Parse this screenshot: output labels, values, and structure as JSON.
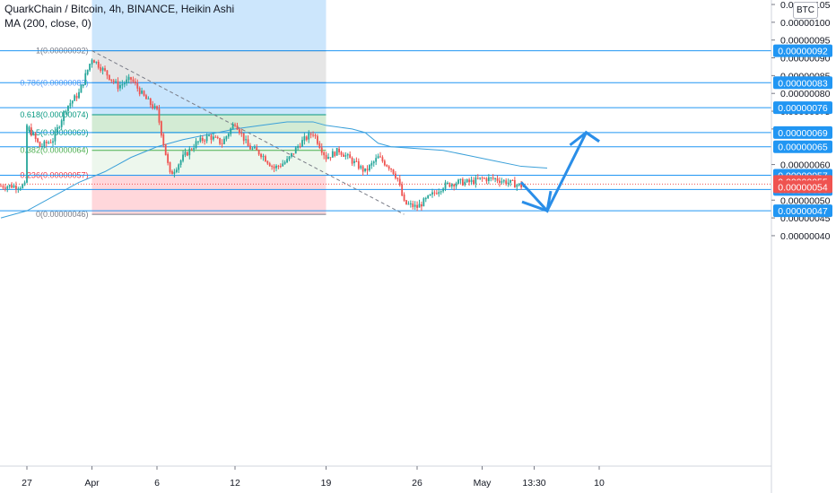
{
  "header": {
    "symbol_line": "QuarkChain / Bitcoin, 4h, BINANCE, Heikin Ashi",
    "indicator_line": "MA (200, close, 0)",
    "currency_button": "BTC"
  },
  "colors": {
    "up": "#26a69a",
    "down": "#ef5350",
    "ma": "#3ba0d9",
    "level_line": "#2196f3",
    "arrow": "#2a8ee8",
    "label_bg": "#2196f3",
    "range_blue": "#bbdefb",
    "fib_gray": "#e0e0e0",
    "fib_green": "#e8f5e9",
    "fib_red": "#ffcdd2"
  },
  "axis": {
    "y_ticks": [
      {
        "label": "0.00000105",
        "value": 1.05
      },
      {
        "label": "0.00000100",
        "value": 1.0
      },
      {
        "label": "0.00000095",
        "value": 0.95
      },
      {
        "label": "0.00000090",
        "value": 0.9
      },
      {
        "label": "0.00000085",
        "value": 0.85
      },
      {
        "label": "0.00000080",
        "value": 0.8
      },
      {
        "label": "0.00000075",
        "value": 0.75
      },
      {
        "label": "0.00000070",
        "value": 0.7
      },
      {
        "label": "0.00000060",
        "value": 0.6
      },
      {
        "label": "0.00000050",
        "value": 0.5
      },
      {
        "label": "0.00000045",
        "value": 0.45
      },
      {
        "label": "0.00000040",
        "value": 0.4
      }
    ],
    "x_ticks": [
      {
        "label": "27",
        "value": 0
      },
      {
        "label": "Apr",
        "value": 5
      },
      {
        "label": "6",
        "value": 10
      },
      {
        "label": "12",
        "value": 16
      },
      {
        "label": "19",
        "value": 23
      },
      {
        "label": "26",
        "value": 30
      },
      {
        "label": "May",
        "value": 35
      },
      {
        "label": "13:30",
        "value": 39
      },
      {
        "label": "10",
        "value": 44
      }
    ]
  },
  "price_levels": [
    {
      "label": "0.00000092",
      "value": 0.92
    },
    {
      "label": "0.00000083",
      "value": 0.83
    },
    {
      "label": "0.00000076",
      "value": 0.76
    },
    {
      "label": "0.00000069",
      "value": 0.69
    },
    {
      "label": "0.00000065",
      "value": 0.65
    },
    {
      "label": "0.00000057",
      "value": 0.57
    },
    {
      "label": "0.00000053",
      "value": 0.53
    },
    {
      "label": "0.00000047",
      "value": 0.47
    }
  ],
  "current_price_labels": [
    {
      "label": "0.00000055",
      "value": 0.55
    },
    {
      "label": "0.00000054",
      "value": 0.54
    }
  ],
  "fib_levels": [
    {
      "label": "1(0.00000092)",
      "value": 0.92,
      "color": "#787b86"
    },
    {
      "label": "0.786(0.00000083)",
      "value": 0.83,
      "color": "#5b9cf6"
    },
    {
      "label": "0.618(0.00000074)",
      "value": 0.74,
      "color": "#089981"
    },
    {
      "label": "0.5(0.00000069)",
      "value": 0.69,
      "color": "#089981"
    },
    {
      "label": "0.382(0.00000064)",
      "value": 0.64,
      "color": "#4caf50"
    },
    {
      "label": "0.236(0.00000057)",
      "value": 0.57,
      "color": "#f23645"
    },
    {
      "label": "0(0.00000046)",
      "value": 0.46,
      "color": "#787b86"
    }
  ],
  "chart_data": {
    "type": "candlestick",
    "price_unit": "1e-6 BTC",
    "ylim": [
      0.4,
      1.05
    ],
    "date_range_start": 5,
    "date_range_end": 23,
    "price_path": [
      [
        0,
        0.71
      ],
      [
        1,
        0.65
      ],
      [
        2,
        0.67
      ],
      [
        3,
        0.76
      ],
      [
        4,
        0.8
      ],
      [
        5,
        0.9
      ],
      [
        6,
        0.86
      ],
      [
        7,
        0.82
      ],
      [
        8,
        0.84
      ],
      [
        9,
        0.79
      ],
      [
        10,
        0.75
      ],
      [
        11,
        0.57
      ],
      [
        12,
        0.62
      ],
      [
        13,
        0.66
      ],
      [
        14,
        0.68
      ],
      [
        15,
        0.66
      ],
      [
        16,
        0.72
      ],
      [
        17,
        0.65
      ],
      [
        18,
        0.63
      ],
      [
        19,
        0.59
      ],
      [
        20,
        0.61
      ],
      [
        21,
        0.66
      ],
      [
        22,
        0.69
      ],
      [
        23,
        0.62
      ],
      [
        24,
        0.64
      ],
      [
        25,
        0.61
      ],
      [
        26,
        0.58
      ],
      [
        27,
        0.62
      ],
      [
        28,
        0.59
      ],
      [
        28.5,
        0.56
      ],
      [
        29,
        0.49
      ],
      [
        30,
        0.48
      ],
      [
        31,
        0.51
      ],
      [
        32,
        0.54
      ],
      [
        33,
        0.55
      ],
      [
        34,
        0.55
      ],
      [
        35,
        0.56
      ],
      [
        36,
        0.56
      ],
      [
        37,
        0.55
      ],
      [
        38,
        0.54
      ]
    ],
    "ma200": [
      [
        -2,
        0.45
      ],
      [
        0,
        0.47
      ],
      [
        2,
        0.51
      ],
      [
        4,
        0.55
      ],
      [
        6,
        0.58
      ],
      [
        8,
        0.62
      ],
      [
        10,
        0.65
      ],
      [
        12,
        0.67
      ],
      [
        14,
        0.685
      ],
      [
        16,
        0.7
      ],
      [
        18,
        0.71
      ],
      [
        20,
        0.72
      ],
      [
        21,
        0.72
      ],
      [
        22,
        0.72
      ],
      [
        23,
        0.71
      ],
      [
        24,
        0.705
      ],
      [
        25,
        0.7
      ],
      [
        26,
        0.69
      ],
      [
        27,
        0.66
      ],
      [
        28,
        0.65
      ],
      [
        30,
        0.645
      ],
      [
        32,
        0.64
      ],
      [
        34,
        0.625
      ],
      [
        36,
        0.61
      ],
      [
        38,
        0.595
      ],
      [
        40,
        0.59
      ]
    ],
    "forecast_arrow": [
      [
        38,
        0.55
      ],
      [
        40,
        0.47
      ],
      [
        43,
        0.69
      ],
      [
        44,
        0.665
      ]
    ],
    "trend_line": [
      [
        5,
        0.92
      ],
      [
        29,
        0.46
      ]
    ]
  }
}
